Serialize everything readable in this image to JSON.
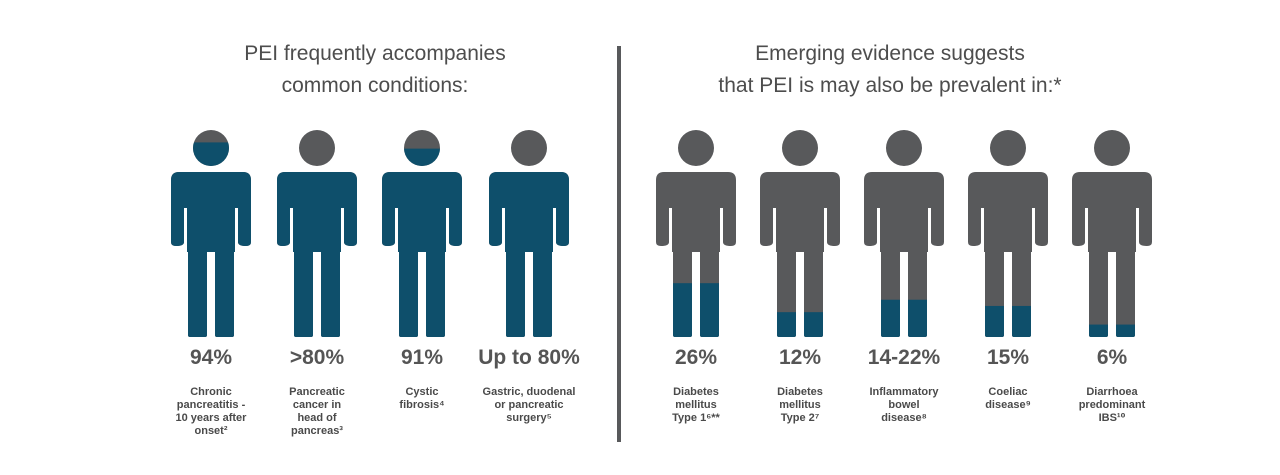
{
  "left_group": {
    "heading": [
      "PEI frequently accompanies",
      "common conditions:"
    ]
  },
  "right_group": {
    "heading": [
      "Emerging evidence suggests",
      "that PEI is may also be prevalent in:*"
    ]
  },
  "colors": {
    "teal": "#0e4f6b",
    "grey": "#58595b",
    "text": "#4d4d4d"
  },
  "chart_data": [
    {
      "type": "pictograph",
      "title": "PEI frequently accompanies common conditions:",
      "fill_direction": "top-down",
      "categories": [
        "Chronic pancreatitis - 10 years after onset²",
        "Pancreatic cancer in head of pancreas³",
        "Cystic fibrosis⁴",
        "Gastric, duodenal or pancreatic surgery⁵"
      ],
      "labels": [
        "Chronic\npancreatitis -\n10 years after\nonset²",
        "Pancreatic\ncancer in\nhead of\npancreas³",
        "Cystic\nfibrosis⁴",
        "Gastric, duodenal\nor pancreatic\nsurgery⁵"
      ],
      "value_labels": [
        "94%",
        ">80%",
        "91%",
        "Up to 80%"
      ],
      "values": [
        94,
        80,
        91,
        80
      ]
    },
    {
      "type": "pictograph",
      "title": "Emerging evidence suggests that PEI is may also be prevalent in:*",
      "fill_direction": "bottom-up",
      "categories": [
        "Diabetes mellitus Type 1⁶**",
        "Diabetes mellitus Type 2⁷",
        "Inflammatory bowel disease⁸",
        "Coeliac disease⁹",
        "Diarrhoea predominant IBS¹⁰"
      ],
      "labels": [
        "Diabetes\nmellitus\nType 1⁶**",
        "Diabetes\nmellitus\nType 2⁷",
        "Inflammatory\nbowel\ndisease⁸",
        "Coeliac\ndisease⁹",
        "Diarrhoea\npredominant\nIBS¹⁰"
      ],
      "value_labels": [
        "26%",
        "12%",
        "14-22%",
        "15%",
        "6%"
      ],
      "values": [
        26,
        12,
        18,
        15,
        6
      ]
    }
  ]
}
